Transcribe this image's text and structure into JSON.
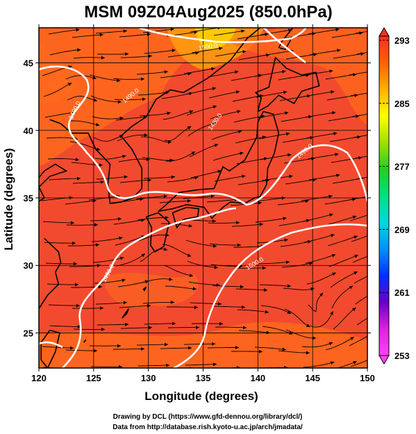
{
  "map": {
    "title": "MSM 09Z04Aug2025 (850.0hPa)",
    "xlabel": "Longitude (degrees)",
    "ylabel": "Latitude  (degrees)",
    "xlim": [
      120,
      150
    ],
    "ylim": [
      22.4,
      47.6
    ],
    "xticks": [
      "120",
      "125",
      "130",
      "135",
      "140",
      "145",
      "150"
    ],
    "yticks": [
      "25",
      "30",
      "35",
      "40",
      "45"
    ],
    "grid": true,
    "fields": [
      "temperature (shaded)",
      "geopotential height (white contours)",
      "wind (streamlines)"
    ],
    "contour_labels": [
      "1490.0",
      "1480.0",
      "1490.0",
      "1490.0",
      "1500.0",
      "1500.0",
      "1490.0"
    ],
    "colors": {
      "base_fill": "#f24a2e",
      "warm_fill": "#ff6a1c",
      "hot_fill": "#ffcc00",
      "contour": "#ffffff",
      "coastline": "#000000",
      "streamline": "#000000"
    }
  },
  "colorbar": {
    "ticks": [
      "293",
      "285",
      "277",
      "269",
      "261",
      "253"
    ],
    "colors": [
      "#ff40ff",
      "#e020e0",
      "#6a00c8",
      "#0030ff",
      "#0090ff",
      "#00d8e0",
      "#00e080",
      "#20d020",
      "#a0e000",
      "#ffff00",
      "#ffb000",
      "#ff6000",
      "#ff3020"
    ]
  },
  "credits": {
    "line1": "Drawing by DCL (https://www.gfd-dennou.org/library/dcl/)",
    "line2": "Data from http://database.rish.kyoto-u.ac.jp/arch/jmadata/"
  }
}
